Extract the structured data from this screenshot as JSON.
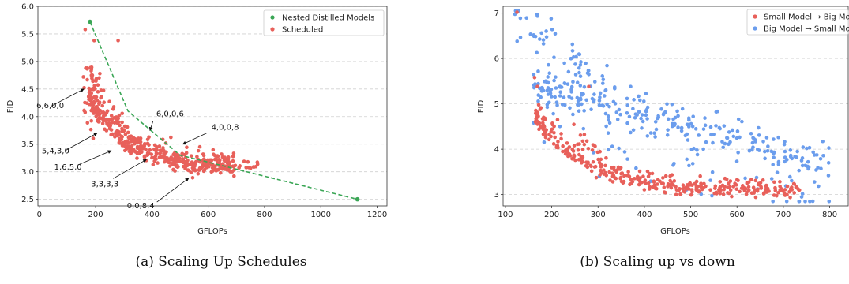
{
  "chart_data": [
    {
      "type": "scatter",
      "caption": "(a) Scaling Up Schedules",
      "xlabel": "GFLOPs",
      "ylabel": "FID",
      "xlim": [
        -5,
        1235
      ],
      "ylim": [
        2.38,
        6.0
      ],
      "xticks": [
        "0",
        "200",
        "400",
        "600",
        "800",
        "1000",
        "1200"
      ],
      "yticks": [
        "2.5",
        "3.0",
        "3.5",
        "4.0",
        "4.5",
        "5.0",
        "5.5",
        "6.0"
      ],
      "grid": "horizontal-dashed",
      "legend": {
        "placement": "top-right",
        "entries": [
          "Nested Distilled Models",
          "Scheduled"
        ]
      },
      "colors": {
        "nested": "#3aa655",
        "scheduled": "#e8605a"
      },
      "nested_points": [
        [
          180,
          5.72
        ],
        [
          315,
          4.1
        ],
        [
          500,
          3.3
        ],
        [
          1130,
          2.5
        ]
      ],
      "annotations": [
        {
          "text": "6,6,0,0",
          "x": 158,
          "y": 4.5
        },
        {
          "text": "6,0,0,6",
          "x": 393,
          "y": 3.75
        },
        {
          "text": "4,0,0,8",
          "x": 510,
          "y": 3.5
        },
        {
          "text": "5,4,3,0",
          "x": 205,
          "y": 3.7
        },
        {
          "text": "1,6,5,0",
          "x": 255,
          "y": 3.38
        },
        {
          "text": "3,3,3,3",
          "x": 380,
          "y": 3.22
        },
        {
          "text": "0,0,8,4",
          "x": 530,
          "y": 2.88
        }
      ]
    },
    {
      "type": "scatter",
      "caption": "(b) Scaling up vs down",
      "xlabel": "GFLOPs",
      "ylabel": "FID",
      "xlim": [
        95,
        840
      ],
      "ylim": [
        2.75,
        7.15
      ],
      "xticks": [
        "100",
        "200",
        "300",
        "400",
        "500",
        "600",
        "700",
        "800"
      ],
      "yticks": [
        "3",
        "4",
        "5",
        "6",
        "7"
      ],
      "grid": "horizontal-dashed",
      "legend": {
        "placement": "top-right",
        "entries": [
          "Small Model → Big Model",
          "Big Model → Small Model"
        ]
      },
      "colors": {
        "small_to_big": "#e8605a",
        "big_to_small": "#6b9ded"
      }
    }
  ]
}
